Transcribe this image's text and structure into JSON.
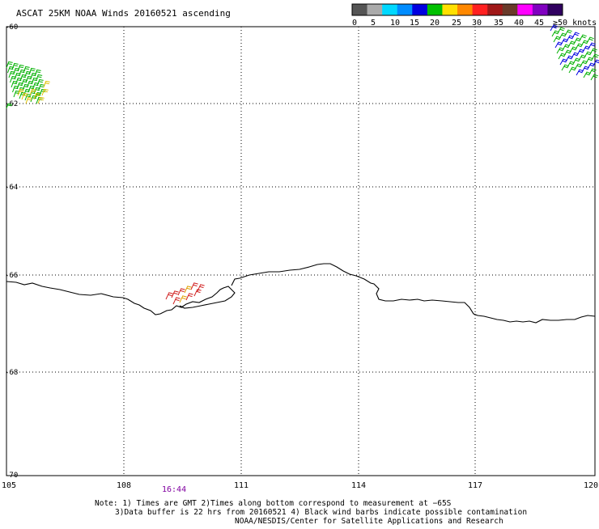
{
  "title": "ASCAT 25KM NOAA Winds 20160521 ascending",
  "colorbar": {
    "labels": [
      "0",
      "5",
      "10",
      "15",
      "20",
      "25",
      "30",
      "35",
      "40",
      "45",
      "≥50 knots"
    ],
    "colors": [
      "#555555",
      "#aaaaaa",
      "#00d8ff",
      "#008cff",
      "#0000e0",
      "#00c000",
      "#ffe000",
      "#ff8800",
      "#ff2020",
      "#a01818",
      "#6a3a2a",
      "#ff00ff",
      "#8000c0",
      "#300060"
    ]
  },
  "map": {
    "lon_ticks": [
      "105",
      "108",
      "111",
      "114",
      "117",
      "120"
    ],
    "lon_values": [
      105,
      108,
      111,
      114,
      117,
      120
    ],
    "lat_ticks": [
      "-60",
      "-62",
      "-64",
      "-66",
      "-68",
      "-70"
    ],
    "lat_values": [
      -60,
      -62,
      -64,
      -66,
      -68,
      -70
    ],
    "time_label": "16:44",
    "time_label_color": "#8000a0",
    "coastline_color": "#000000",
    "grid_style": "dotted"
  },
  "notes": {
    "line1": "Note: 1) Times are GMT 2)Times along bottom correspond to measurement at −65S",
    "line2": "3)Data buffer is 22 hrs from 20160521 4) Black wind barbs indicate possible contamination",
    "line3": "NOAA/NESDIS/Center for Satellite Applications and Research"
  }
}
